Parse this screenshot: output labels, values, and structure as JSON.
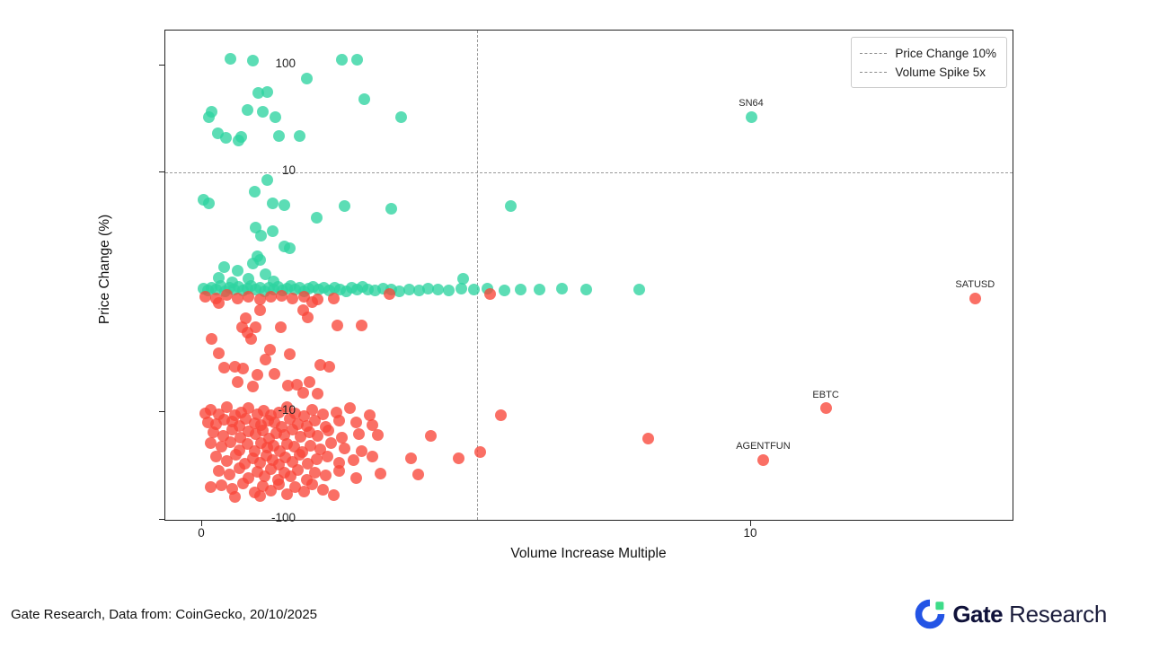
{
  "chart_data": {
    "type": "scatter",
    "xlabel": "Volume Increase Multiple",
    "ylabel": "Price Change (%)",
    "x_axis": {
      "scale": "linear",
      "range": [
        -0.67,
        14.8
      ],
      "ticks": [
        {
          "value": 0,
          "label": "0"
        },
        {
          "value": 10,
          "label": "10"
        }
      ]
    },
    "y_axis": {
      "scale": "symlog",
      "linthresh": 10,
      "range": [
        -104,
        210
      ],
      "ticks": [
        {
          "value": 100,
          "label": "100"
        },
        {
          "value": 10,
          "label": "10"
        },
        {
          "value": -10,
          "label": "-10"
        },
        {
          "value": -100,
          "label": "-100"
        }
      ]
    },
    "reference_lines": [
      {
        "axis": "y",
        "value": 10,
        "label": "Price Change 10%",
        "style": "dashed",
        "color": "#999999"
      },
      {
        "axis": "x",
        "value": 5,
        "label": "Volume Spike 5x",
        "style": "dashed",
        "color": "#999999"
      }
    ],
    "legend": {
      "position": "top-right",
      "entries": [
        {
          "label": "Price Change 10%"
        },
        {
          "label": "Volume Spike 5x"
        }
      ]
    },
    "annotations": [
      {
        "text": "SN64",
        "x": 10.0,
        "y": 33,
        "series": "gainers"
      },
      {
        "text": "SATUSD",
        "x": 14.08,
        "y": -0.5,
        "series": "losers"
      },
      {
        "text": "EBTC",
        "x": 11.36,
        "y": -9.7,
        "series": "losers"
      },
      {
        "text": "AGENTFUN",
        "x": 10.22,
        "y": -28,
        "series": "losers"
      }
    ],
    "series": [
      {
        "name": "gainers",
        "color": "#2ed3a0",
        "points": [
          [
            0.52,
            115
          ],
          [
            0.92,
            110
          ],
          [
            2.54,
            112
          ],
          [
            2.83,
            113
          ],
          [
            1.9,
            75
          ],
          [
            1.02,
            55
          ],
          [
            1.18,
            56
          ],
          [
            2.96,
            48
          ],
          [
            0.18,
            37
          ],
          [
            0.83,
            38
          ],
          [
            1.1,
            37
          ],
          [
            0.13,
            33
          ],
          [
            1.34,
            33
          ],
          [
            3.63,
            33
          ],
          [
            10.0,
            33
          ],
          [
            0.28,
            23
          ],
          [
            0.43,
            21
          ],
          [
            0.67,
            20
          ],
          [
            0.72,
            21.5
          ],
          [
            1.4,
            22
          ],
          [
            1.78,
            22
          ],
          [
            1.18,
            9.4
          ],
          [
            0.95,
            8.4
          ],
          [
            0.03,
            7.7
          ],
          [
            0.13,
            7.4
          ],
          [
            1.28,
            7.4
          ],
          [
            1.5,
            7.3
          ],
          [
            2.6,
            7.2
          ],
          [
            3.45,
            7.0
          ],
          [
            5.63,
            7.2
          ],
          [
            2.08,
            6.2
          ],
          [
            0.97,
            5.4
          ],
          [
            1.28,
            5.1
          ],
          [
            1.08,
            4.7
          ],
          [
            1.49,
            3.8
          ],
          [
            1.6,
            3.7
          ],
          [
            1.0,
            3.0
          ],
          [
            1.06,
            2.7
          ],
          [
            0.93,
            2.4
          ],
          [
            0.4,
            2.1
          ],
          [
            0.65,
            1.8
          ],
          [
            4.76,
            1.1
          ],
          [
            1.15,
            1.5
          ],
          [
            0.3,
            1.2
          ],
          [
            0.85,
            1.1
          ],
          [
            1.3,
            0.9
          ],
          [
            0.55,
            0.8
          ],
          [
            0.02,
            0.3
          ],
          [
            0.1,
            0.15
          ],
          [
            0.18,
            0.4
          ],
          [
            0.26,
            0.2
          ],
          [
            0.34,
            0.5
          ],
          [
            0.42,
            0.1
          ],
          [
            0.5,
            0.35
          ],
          [
            0.58,
            0.2
          ],
          [
            0.66,
            0.45
          ],
          [
            0.74,
            0.15
          ],
          [
            0.82,
            0.3
          ],
          [
            0.9,
            0.5
          ],
          [
            0.98,
            0.2
          ],
          [
            1.06,
            0.4
          ],
          [
            1.14,
            0.1
          ],
          [
            1.22,
            0.35
          ],
          [
            1.3,
            0.2
          ],
          [
            1.38,
            0.45
          ],
          [
            1.46,
            0.15
          ],
          [
            1.54,
            0.3
          ],
          [
            1.62,
            0.5
          ],
          [
            1.7,
            0.2
          ],
          [
            1.78,
            0.4
          ],
          [
            1.86,
            0.1
          ],
          [
            1.94,
            0.3
          ],
          [
            2.02,
            0.45
          ],
          [
            2.12,
            0.2
          ],
          [
            2.22,
            0.35
          ],
          [
            2.32,
            0.15
          ],
          [
            2.42,
            0.4
          ],
          [
            2.52,
            0.25
          ],
          [
            2.62,
            0.1
          ],
          [
            2.72,
            0.35
          ],
          [
            2.82,
            0.2
          ],
          [
            2.92,
            0.45
          ],
          [
            3.02,
            0.25
          ],
          [
            3.15,
            0.15
          ],
          [
            3.3,
            0.3
          ],
          [
            3.45,
            0.2
          ],
          [
            3.6,
            0.1
          ],
          [
            3.78,
            0.25
          ],
          [
            3.95,
            0.15
          ],
          [
            4.12,
            0.3
          ],
          [
            4.3,
            0.2
          ],
          [
            4.5,
            0.15
          ],
          [
            4.72,
            0.3
          ],
          [
            4.95,
            0.2
          ],
          [
            5.2,
            0.3
          ],
          [
            5.5,
            0.15
          ],
          [
            5.8,
            0.25
          ],
          [
            6.15,
            0.2
          ],
          [
            6.55,
            0.3
          ],
          [
            7.0,
            0.2
          ],
          [
            7.97,
            0.25
          ]
        ]
      },
      {
        "name": "losers",
        "color": "#f8463a",
        "points": [
          [
            0.05,
            -0.35
          ],
          [
            0.25,
            -0.5
          ],
          [
            0.45,
            -0.25
          ],
          [
            0.65,
            -0.55
          ],
          [
            0.85,
            -0.35
          ],
          [
            1.05,
            -0.6
          ],
          [
            1.25,
            -0.4
          ],
          [
            1.45,
            -0.3
          ],
          [
            1.65,
            -0.55
          ],
          [
            1.85,
            -0.4
          ],
          [
            2.1,
            -0.6
          ],
          [
            2.4,
            -0.5
          ],
          [
            3.42,
            -0.15
          ],
          [
            5.24,
            -0.15
          ],
          [
            14.08,
            -0.5
          ],
          [
            0.3,
            -0.9
          ],
          [
            2.0,
            -0.8
          ],
          [
            1.06,
            -1.5
          ],
          [
            1.84,
            -1.5
          ],
          [
            1.93,
            -2.1
          ],
          [
            0.79,
            -2.2
          ],
          [
            0.98,
            -2.9
          ],
          [
            0.73,
            -2.9
          ],
          [
            0.82,
            -3.4
          ],
          [
            0.9,
            -3.9
          ],
          [
            1.44,
            -2.9
          ],
          [
            2.47,
            -2.8
          ],
          [
            2.91,
            -2.8
          ],
          [
            0.18,
            -3.9
          ],
          [
            1.24,
            -4.8
          ],
          [
            0.3,
            -5.1
          ],
          [
            0.6,
            -6.2
          ],
          [
            0.74,
            -6.4
          ],
          [
            1.01,
            -6.9
          ],
          [
            1.31,
            -6.8
          ],
          [
            0.4,
            -6.3
          ],
          [
            2.16,
            -6.1
          ],
          [
            2.32,
            -6.2
          ],
          [
            0.64,
            -7.5
          ],
          [
            0.93,
            -7.9
          ],
          [
            1.57,
            -7.8
          ],
          [
            1.73,
            -7.7
          ],
          [
            1.95,
            -7.5
          ],
          [
            1.84,
            -8.4
          ],
          [
            2.1,
            -8.5
          ],
          [
            1.15,
            -5.6
          ],
          [
            1.6,
            -5.2
          ],
          [
            0.05,
            -10.2
          ],
          [
            0.15,
            -9.8
          ],
          [
            0.3,
            -10.5
          ],
          [
            0.45,
            -9.6
          ],
          [
            0.6,
            -10.8
          ],
          [
            0.72,
            -10.1
          ],
          [
            0.85,
            -9.7
          ],
          [
            1.0,
            -10.4
          ],
          [
            1.12,
            -9.9
          ],
          [
            1.25,
            -10.6
          ],
          [
            1.4,
            -10.0
          ],
          [
            1.55,
            -9.6
          ],
          [
            1.7,
            -10.3
          ],
          [
            1.85,
            -10.9
          ],
          [
            2.0,
            -9.8
          ],
          [
            2.2,
            -10.5
          ],
          [
            2.45,
            -10.1
          ],
          [
            2.7,
            -9.7
          ],
          [
            3.05,
            -10.6
          ],
          [
            5.45,
            -10.8
          ],
          [
            11.36,
            -9.7
          ],
          [
            0.1,
            -12.5
          ],
          [
            0.25,
            -13.0
          ],
          [
            0.4,
            -11.8
          ],
          [
            0.55,
            -12.2
          ],
          [
            0.68,
            -13.5
          ],
          [
            0.8,
            -11.5
          ],
          [
            0.95,
            -12.8
          ],
          [
            1.08,
            -13.2
          ],
          [
            1.2,
            -11.9
          ],
          [
            1.32,
            -12.4
          ],
          [
            1.45,
            -13.8
          ],
          [
            1.6,
            -11.6
          ],
          [
            1.75,
            -12.9
          ],
          [
            1.9,
            -13.4
          ],
          [
            2.05,
            -12.1
          ],
          [
            2.25,
            -13.7
          ],
          [
            2.5,
            -11.9
          ],
          [
            2.8,
            -12.6
          ],
          [
            3.1,
            -13.3
          ],
          [
            0.2,
            -15.5
          ],
          [
            0.38,
            -16.8
          ],
          [
            0.55,
            -14.6
          ],
          [
            0.7,
            -17.3
          ],
          [
            0.85,
            -15.2
          ],
          [
            0.98,
            -16.1
          ],
          [
            1.1,
            -14.9
          ],
          [
            1.22,
            -17.6
          ],
          [
            1.35,
            -15.8
          ],
          [
            1.5,
            -16.4
          ],
          [
            1.65,
            -14.7
          ],
          [
            1.8,
            -17.1
          ],
          [
            1.95,
            -15.4
          ],
          [
            2.1,
            -16.7
          ],
          [
            2.3,
            -14.8
          ],
          [
            2.55,
            -17.4
          ],
          [
            2.85,
            -15.9
          ],
          [
            3.2,
            -16.3
          ],
          [
            4.16,
            -16.8
          ],
          [
            8.12,
            -17.5
          ],
          [
            0.15,
            -19.5
          ],
          [
            0.35,
            -21.0
          ],
          [
            0.52,
            -19.0
          ],
          [
            0.68,
            -22.5
          ],
          [
            0.82,
            -20.0
          ],
          [
            0.95,
            -23.0
          ],
          [
            1.07,
            -19.3
          ],
          [
            1.18,
            -21.6
          ],
          [
            1.3,
            -20.4
          ],
          [
            1.42,
            -22.9
          ],
          [
            1.55,
            -19.8
          ],
          [
            1.68,
            -21.2
          ],
          [
            1.82,
            -23.5
          ],
          [
            1.98,
            -20.7
          ],
          [
            2.15,
            -22.1
          ],
          [
            2.35,
            -19.6
          ],
          [
            2.6,
            -21.8
          ],
          [
            2.9,
            -23.2
          ],
          [
            5.07,
            -23.7
          ],
          [
            0.25,
            -26.0
          ],
          [
            0.45,
            -28.5
          ],
          [
            0.62,
            -25.0
          ],
          [
            0.78,
            -30.0
          ],
          [
            0.92,
            -27.0
          ],
          [
            1.05,
            -29.5
          ],
          [
            1.17,
            -25.5
          ],
          [
            1.28,
            -28.0
          ],
          [
            1.4,
            -31.0
          ],
          [
            1.52,
            -26.5
          ],
          [
            1.65,
            -29.0
          ],
          [
            1.78,
            -25.2
          ],
          [
            1.92,
            -30.5
          ],
          [
            2.08,
            -27.5
          ],
          [
            2.28,
            -26.2
          ],
          [
            2.5,
            -29.8
          ],
          [
            2.75,
            -27.8
          ],
          [
            3.1,
            -25.8
          ],
          [
            3.8,
            -27.0
          ],
          [
            4.68,
            -27.0
          ],
          [
            10.22,
            -28.0
          ],
          [
            0.3,
            -35.0
          ],
          [
            0.5,
            -38.0
          ],
          [
            0.68,
            -33.5
          ],
          [
            0.85,
            -41.0
          ],
          [
            1.0,
            -36.0
          ],
          [
            1.13,
            -39.5
          ],
          [
            1.25,
            -34.0
          ],
          [
            1.38,
            -42.5
          ],
          [
            1.5,
            -37.0
          ],
          [
            1.62,
            -40.0
          ],
          [
            1.75,
            -34.5
          ],
          [
            1.9,
            -43.0
          ],
          [
            2.05,
            -36.5
          ],
          [
            2.25,
            -39.0
          ],
          [
            2.5,
            -35.5
          ],
          [
            2.8,
            -41.5
          ],
          [
            3.25,
            -37.5
          ],
          [
            3.94,
            -38.0
          ],
          [
            0.35,
            -48.0
          ],
          [
            0.55,
            -52.0
          ],
          [
            0.75,
            -46.0
          ],
          [
            0.95,
            -56.0
          ],
          [
            1.1,
            -49.0
          ],
          [
            1.25,
            -54.0
          ],
          [
            1.4,
            -47.0
          ],
          [
            1.55,
            -58.0
          ],
          [
            1.7,
            -50.0
          ],
          [
            1.85,
            -55.0
          ],
          [
            2.0,
            -47.5
          ],
          [
            2.2,
            -52.5
          ],
          [
            2.4,
            -60.0
          ],
          [
            0.15,
            -50.0
          ],
          [
            0.6,
            -62.0
          ],
          [
            1.05,
            -61.0
          ]
        ]
      }
    ]
  },
  "footer": {
    "source_text": "Gate Research, Data from: CoinGecko, 20/10/2025",
    "logo": {
      "brand_bold": "Gate",
      "brand_regular": "Research",
      "mark_blue": "#2354e5",
      "mark_green": "#3edc89"
    }
  }
}
